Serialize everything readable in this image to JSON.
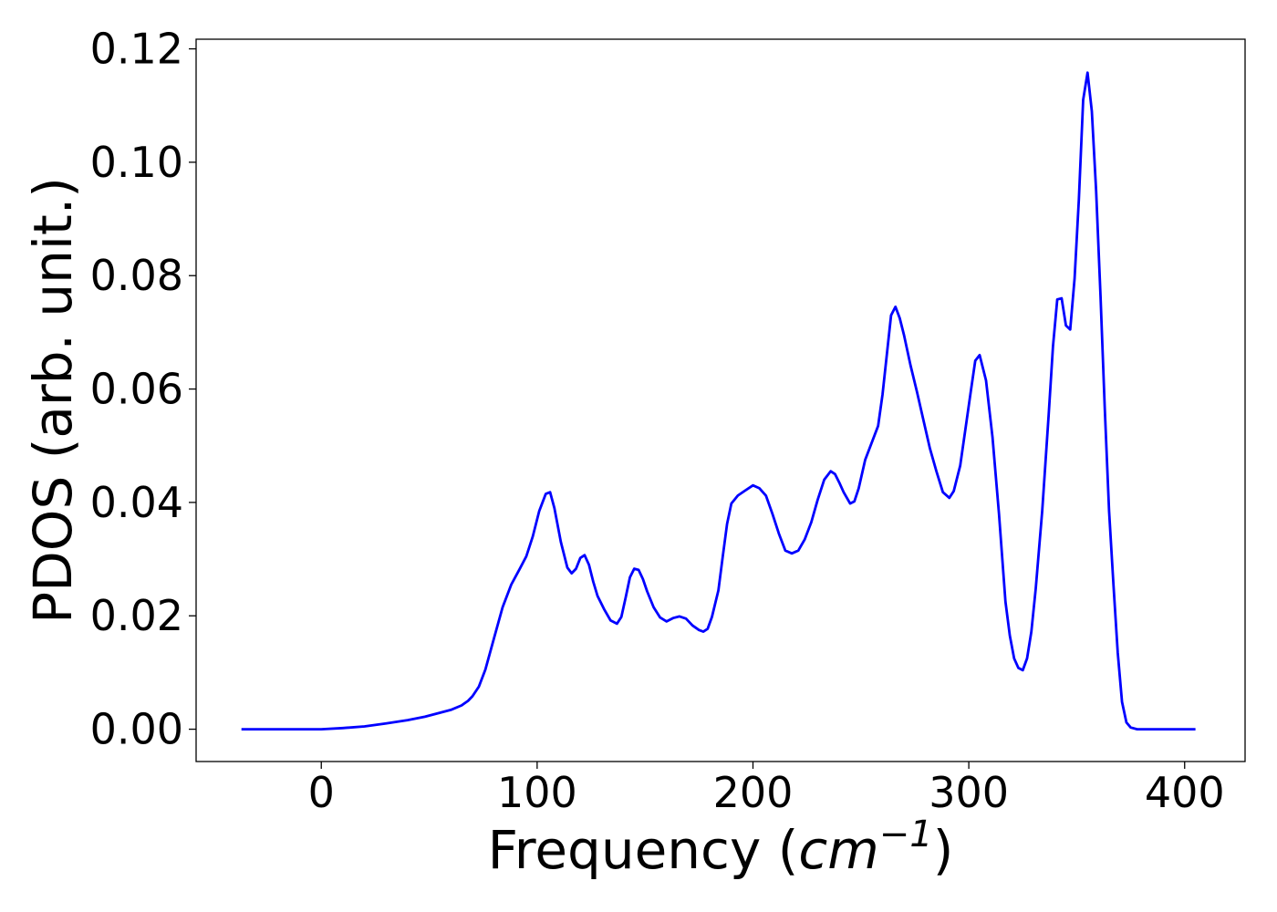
{
  "chart_data": {
    "type": "line",
    "title": "",
    "xlabel_prefix": "Frequency (",
    "xlabel_unit": "cm",
    "xlabel_exponent": "−1",
    "xlabel_suffix": ")",
    "ylabel": "PDOS (arb. unit.)",
    "xlim": [
      -58,
      428
    ],
    "ylim": [
      -0.0057,
      0.1217
    ],
    "xticks": [
      0,
      100,
      200,
      300,
      400
    ],
    "xtick_labels": [
      "0",
      "100",
      "200",
      "300",
      "400"
    ],
    "yticks": [
      0.0,
      0.02,
      0.04,
      0.06,
      0.08,
      0.1,
      0.12
    ],
    "ytick_labels": [
      "0.00",
      "0.02",
      "0.04",
      "0.06",
      "0.08",
      "0.10",
      "0.12"
    ],
    "grid": false,
    "series": [
      {
        "color": "#0000ff",
        "x": [
          -37,
          0,
          10,
          20,
          30,
          40,
          48,
          55,
          60,
          65,
          68,
          70,
          73,
          76,
          80,
          84,
          88,
          92,
          95,
          98,
          101,
          104,
          106,
          108,
          111,
          114,
          116,
          118,
          120,
          122,
          124,
          126,
          128,
          131,
          134,
          137,
          139,
          141,
          143,
          145,
          147,
          149,
          151,
          154,
          157,
          160,
          163,
          166,
          169,
          172,
          175,
          177,
          179,
          181,
          184,
          186,
          188,
          190,
          193,
          196,
          200,
          203,
          206,
          209,
          212,
          215,
          218,
          221,
          224,
          227,
          230,
          233,
          236,
          238,
          240,
          242,
          245,
          247,
          249,
          252,
          255,
          258,
          260,
          262,
          264,
          266,
          268,
          270,
          273,
          276,
          279,
          282,
          285,
          288,
          291,
          293,
          296,
          299,
          301,
          303,
          305,
          308,
          311,
          314,
          317,
          319,
          321,
          323,
          325,
          327,
          329,
          331,
          334,
          337,
          339,
          341,
          343,
          345,
          347,
          349,
          351,
          353,
          355,
          357,
          359,
          361,
          363,
          365,
          367,
          369,
          371,
          373,
          375,
          378,
          382,
          400,
          405
        ],
        "y": [
          0,
          0,
          0.0002,
          0.0005,
          0.001,
          0.0016,
          0.0022,
          0.0029,
          0.0034,
          0.0042,
          0.005,
          0.0058,
          0.0075,
          0.0105,
          0.016,
          0.0215,
          0.0255,
          0.0283,
          0.0305,
          0.034,
          0.0385,
          0.0415,
          0.0418,
          0.039,
          0.033,
          0.0285,
          0.0275,
          0.0283,
          0.0302,
          0.0307,
          0.029,
          0.026,
          0.0235,
          0.0212,
          0.0192,
          0.0186,
          0.0198,
          0.0232,
          0.0268,
          0.0283,
          0.0281,
          0.0265,
          0.0243,
          0.0215,
          0.0197,
          0.019,
          0.0196,
          0.0199,
          0.0195,
          0.0183,
          0.0175,
          0.0172,
          0.0177,
          0.0198,
          0.0245,
          0.0305,
          0.0362,
          0.0398,
          0.0412,
          0.042,
          0.043,
          0.0425,
          0.0412,
          0.038,
          0.0345,
          0.0315,
          0.031,
          0.0315,
          0.0335,
          0.0365,
          0.0405,
          0.044,
          0.0455,
          0.045,
          0.0435,
          0.0418,
          0.0398,
          0.0402,
          0.0425,
          0.0475,
          0.0505,
          0.0535,
          0.059,
          0.066,
          0.073,
          0.0745,
          0.0725,
          0.0695,
          0.0642,
          0.0595,
          0.0545,
          0.0495,
          0.0455,
          0.0418,
          0.0408,
          0.042,
          0.0465,
          0.0545,
          0.0598,
          0.065,
          0.066,
          0.0615,
          0.0515,
          0.038,
          0.0225,
          0.0165,
          0.0125,
          0.0108,
          0.0104,
          0.0125,
          0.0172,
          0.0248,
          0.0385,
          0.0555,
          0.0675,
          0.0758,
          0.076,
          0.0712,
          0.0705,
          0.0795,
          0.0935,
          0.111,
          0.1158,
          0.109,
          0.095,
          0.0765,
          0.0565,
          0.0385,
          0.0255,
          0.0135,
          0.0048,
          0.0012,
          0.0003,
          0,
          0,
          0,
          0
        ]
      }
    ]
  }
}
